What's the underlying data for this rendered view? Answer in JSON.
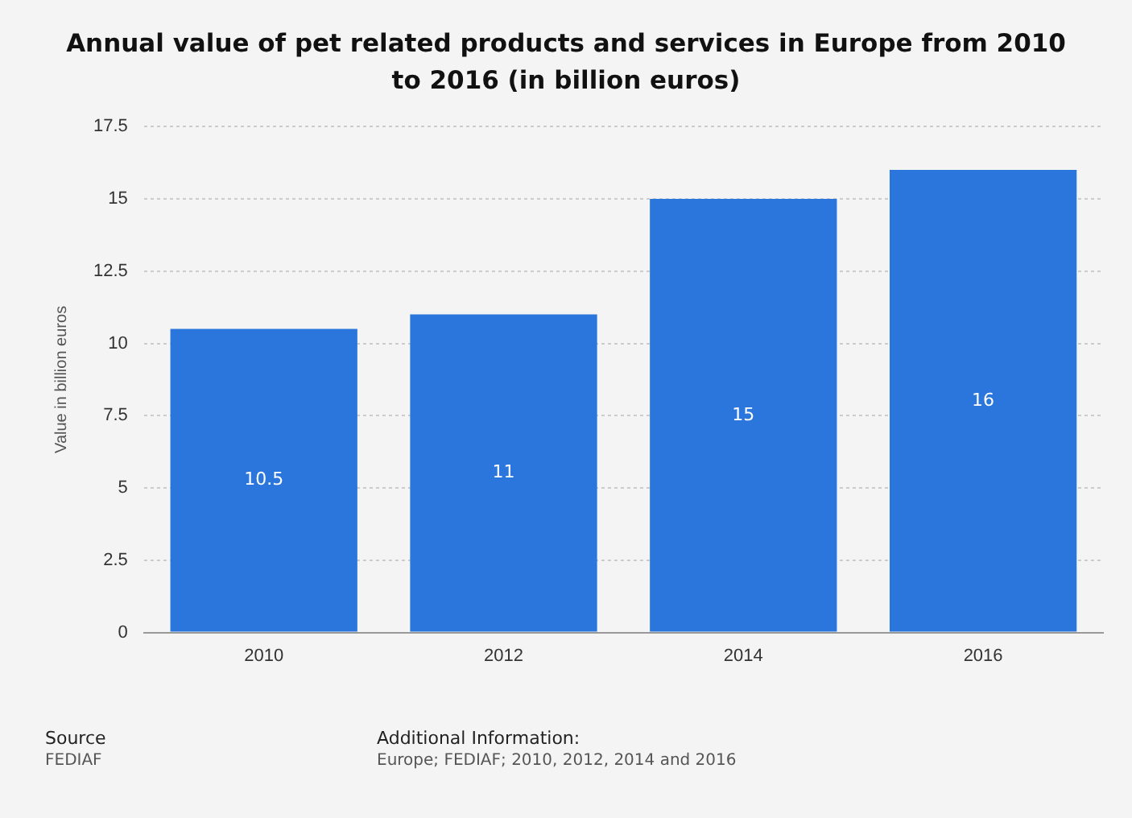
{
  "chart_data": {
    "type": "bar",
    "title": "Annual value of pet related products and services in Europe from 2010 to 2016 (in billion euros)",
    "ylabel": "Value in billion euros",
    "categories": [
      "2010",
      "2012",
      "2014",
      "2016"
    ],
    "values": [
      10.5,
      11,
      15,
      16
    ],
    "color": "#2a76dd",
    "ylim": [
      0,
      17.5
    ],
    "yticks": [
      0,
      2.5,
      5,
      7.5,
      10,
      12.5,
      15,
      17.5
    ],
    "grid": "y",
    "data_labels": true,
    "annotations": [
      "Source",
      "FEDIAF",
      "Additional Information:",
      "Europe; FEDIAF; 2010, 2012, 2014 and 2016"
    ]
  }
}
